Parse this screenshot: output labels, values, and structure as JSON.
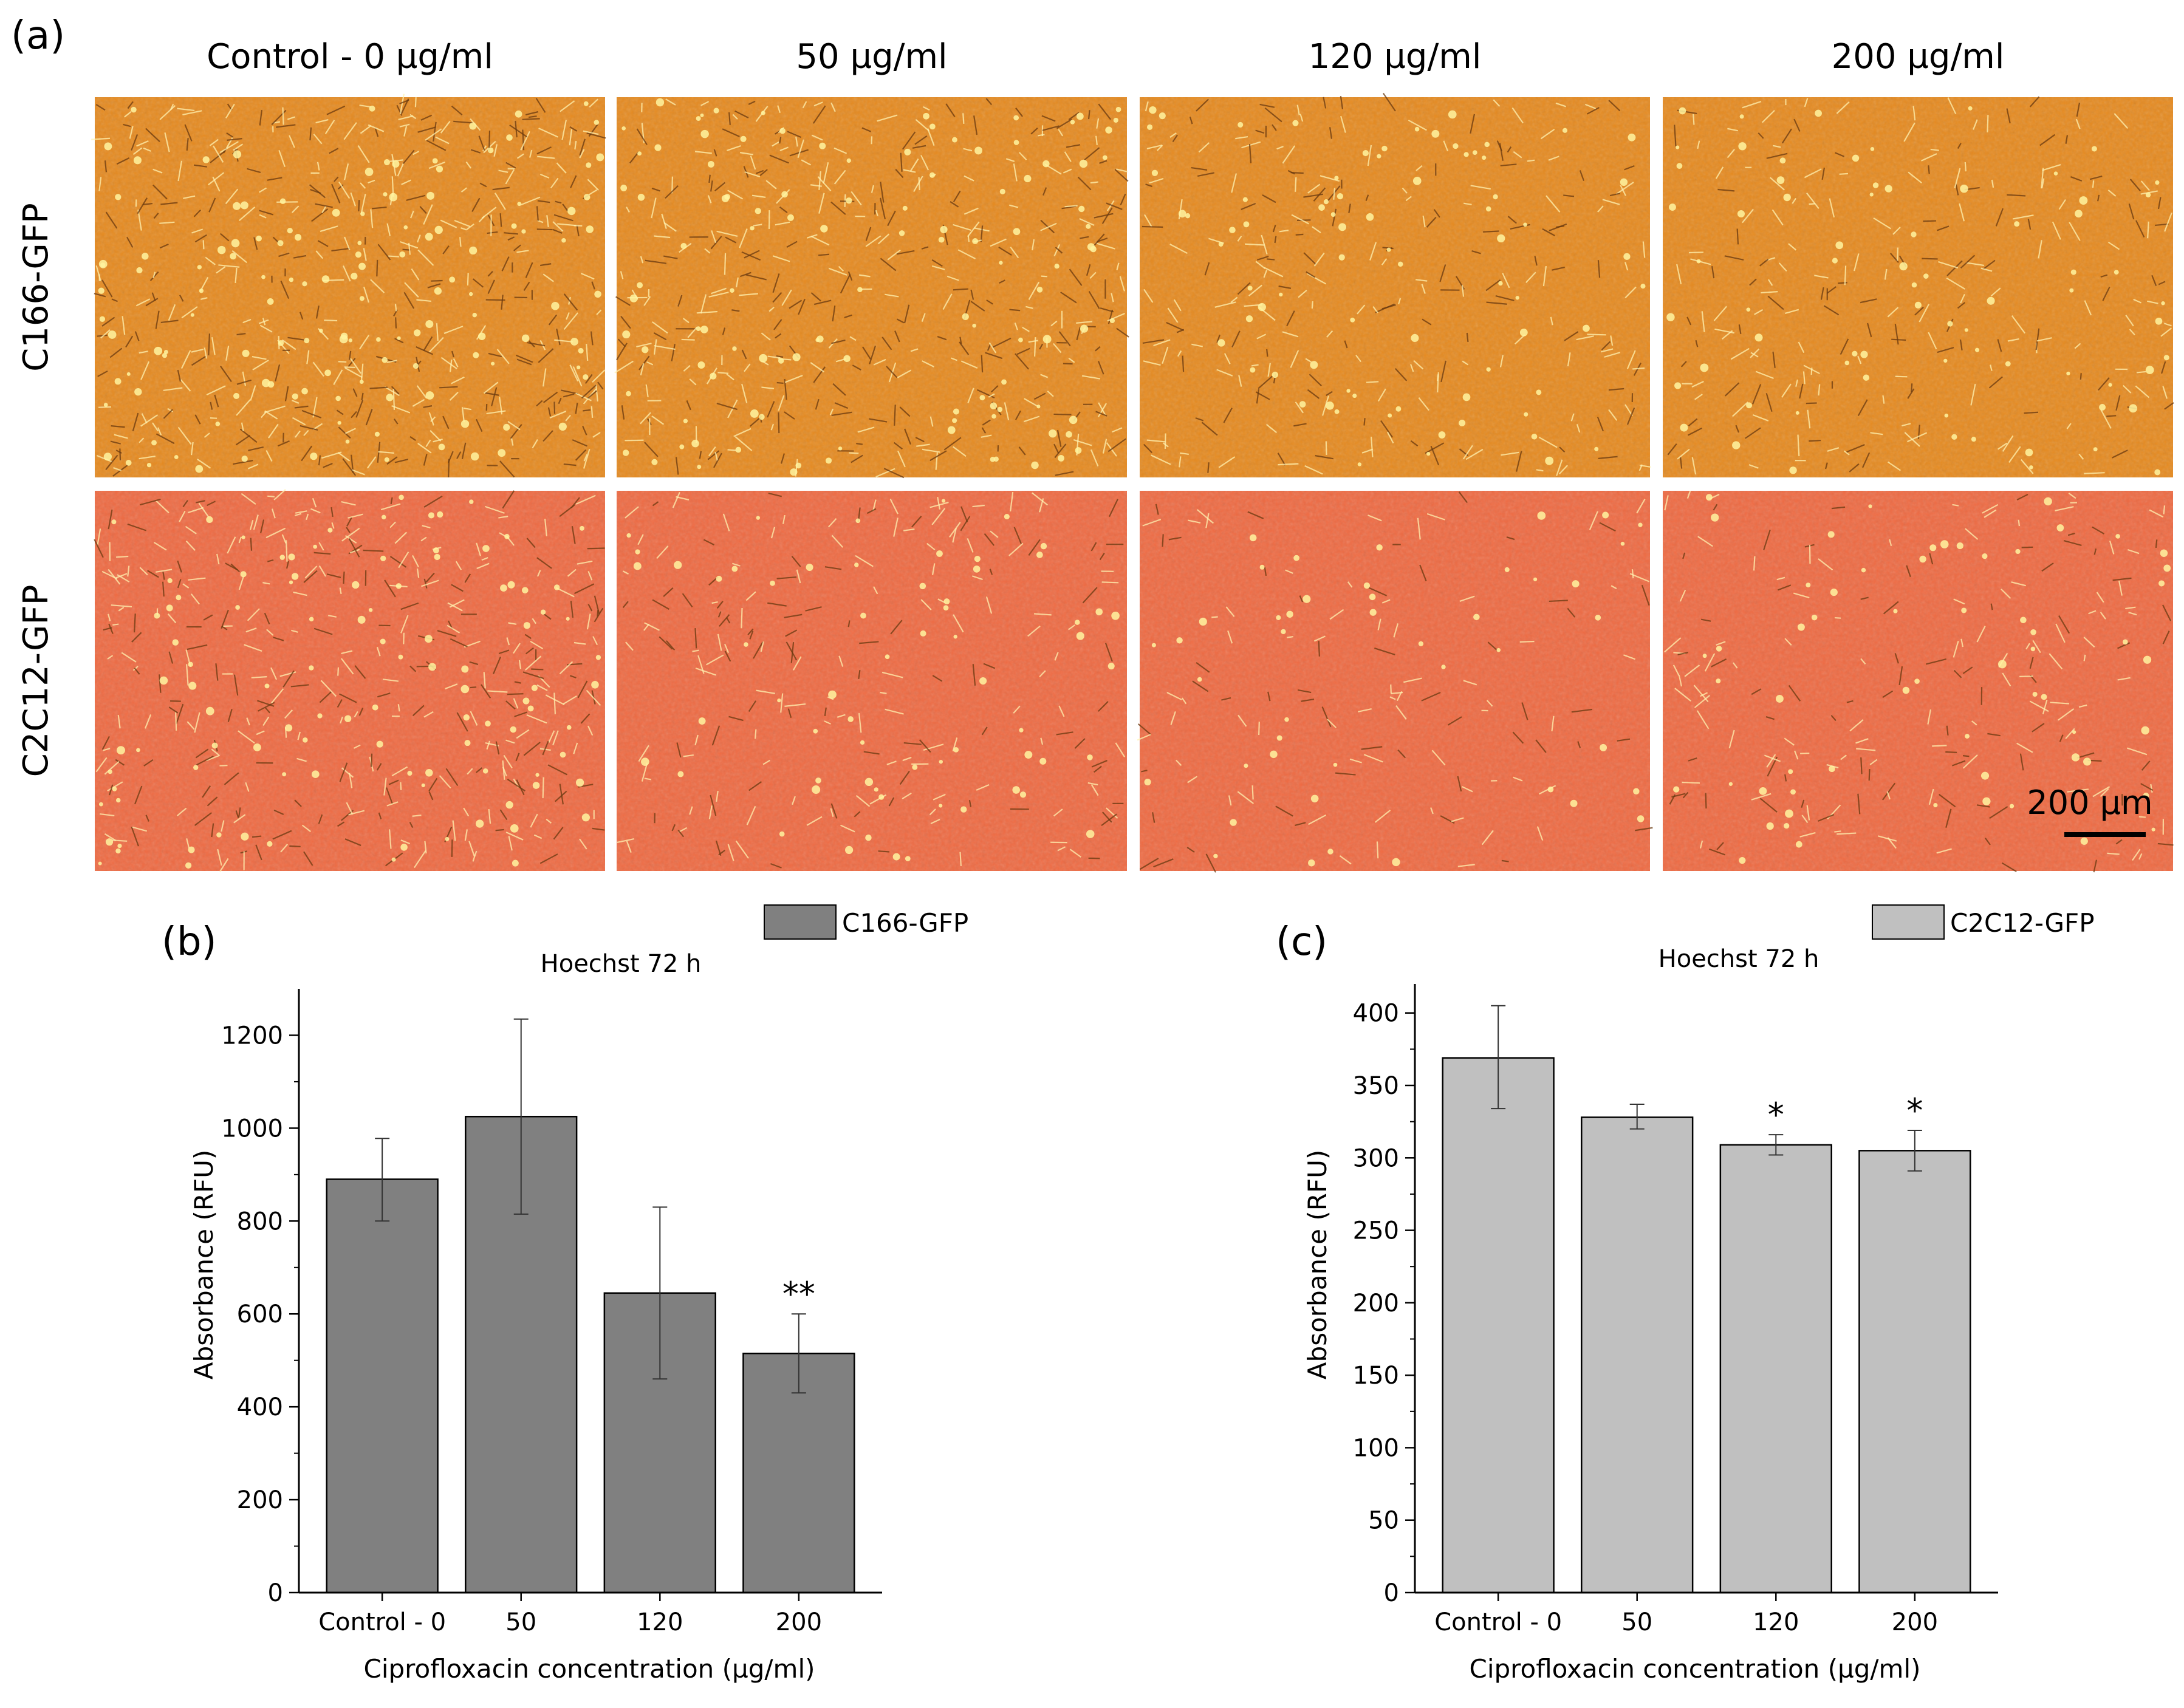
{
  "panel_a": {
    "label": "(a)",
    "column_headers": [
      "Control - 0 µg/ml",
      "50 µg/ml",
      "120 µg/ml",
      "200 µg/ml"
    ],
    "row_headers": [
      "C166-GFP",
      "C2C12-GFP"
    ],
    "scale_bar_label": "200 µm",
    "row_tints": [
      "#e68a1f",
      "#ef6a42"
    ],
    "cell_density": [
      [
        1.0,
        0.82,
        0.5,
        0.46
      ],
      [
        0.75,
        0.38,
        0.22,
        0.36
      ]
    ]
  },
  "chart_data": [
    {
      "type": "bar",
      "panel_label": "(b)",
      "title": "Hoechst 72 h",
      "legend_label": "C166-GFP",
      "legend_position": "top-right",
      "xlabel": "Ciprofloxacin concentration (µg/ml)",
      "ylabel": "Absorbance (RFU)",
      "categories": [
        "Control - 0",
        "50",
        "120",
        "200"
      ],
      "series": [
        {
          "name": "C166-GFP",
          "values": [
            890,
            1025,
            645,
            515
          ],
          "error_low": [
            800,
            815,
            460,
            430
          ],
          "error_high": [
            978,
            1235,
            830,
            600
          ]
        }
      ],
      "annotations": [
        "",
        "",
        "",
        "**"
      ],
      "ylim": [
        0,
        1300
      ],
      "yticks": [
        0,
        200,
        400,
        600,
        800,
        1000,
        1200
      ],
      "bar_color": "#808080",
      "grid": false
    },
    {
      "type": "bar",
      "panel_label": "(c)",
      "title": "Hoechst 72 h",
      "legend_label": "C2C12-GFP",
      "legend_position": "top-right",
      "xlabel": "Ciprofloxacin concentration (µg/ml)",
      "ylabel": "Absorbance (RFU)",
      "categories": [
        "Control - 0",
        "50",
        "120",
        "200"
      ],
      "series": [
        {
          "name": "C2C12-GFP",
          "values": [
            369,
            328,
            309,
            305
          ],
          "error_low": [
            334,
            320,
            302,
            291
          ],
          "error_high": [
            405,
            337,
            316,
            319
          ]
        }
      ],
      "annotations": [
        "",
        "",
        "*",
        "*"
      ],
      "ylim": [
        0,
        420
      ],
      "yticks": [
        0,
        50,
        100,
        150,
        200,
        250,
        300,
        350,
        400
      ],
      "bar_color": "#c0c0c0",
      "grid": false
    }
  ]
}
